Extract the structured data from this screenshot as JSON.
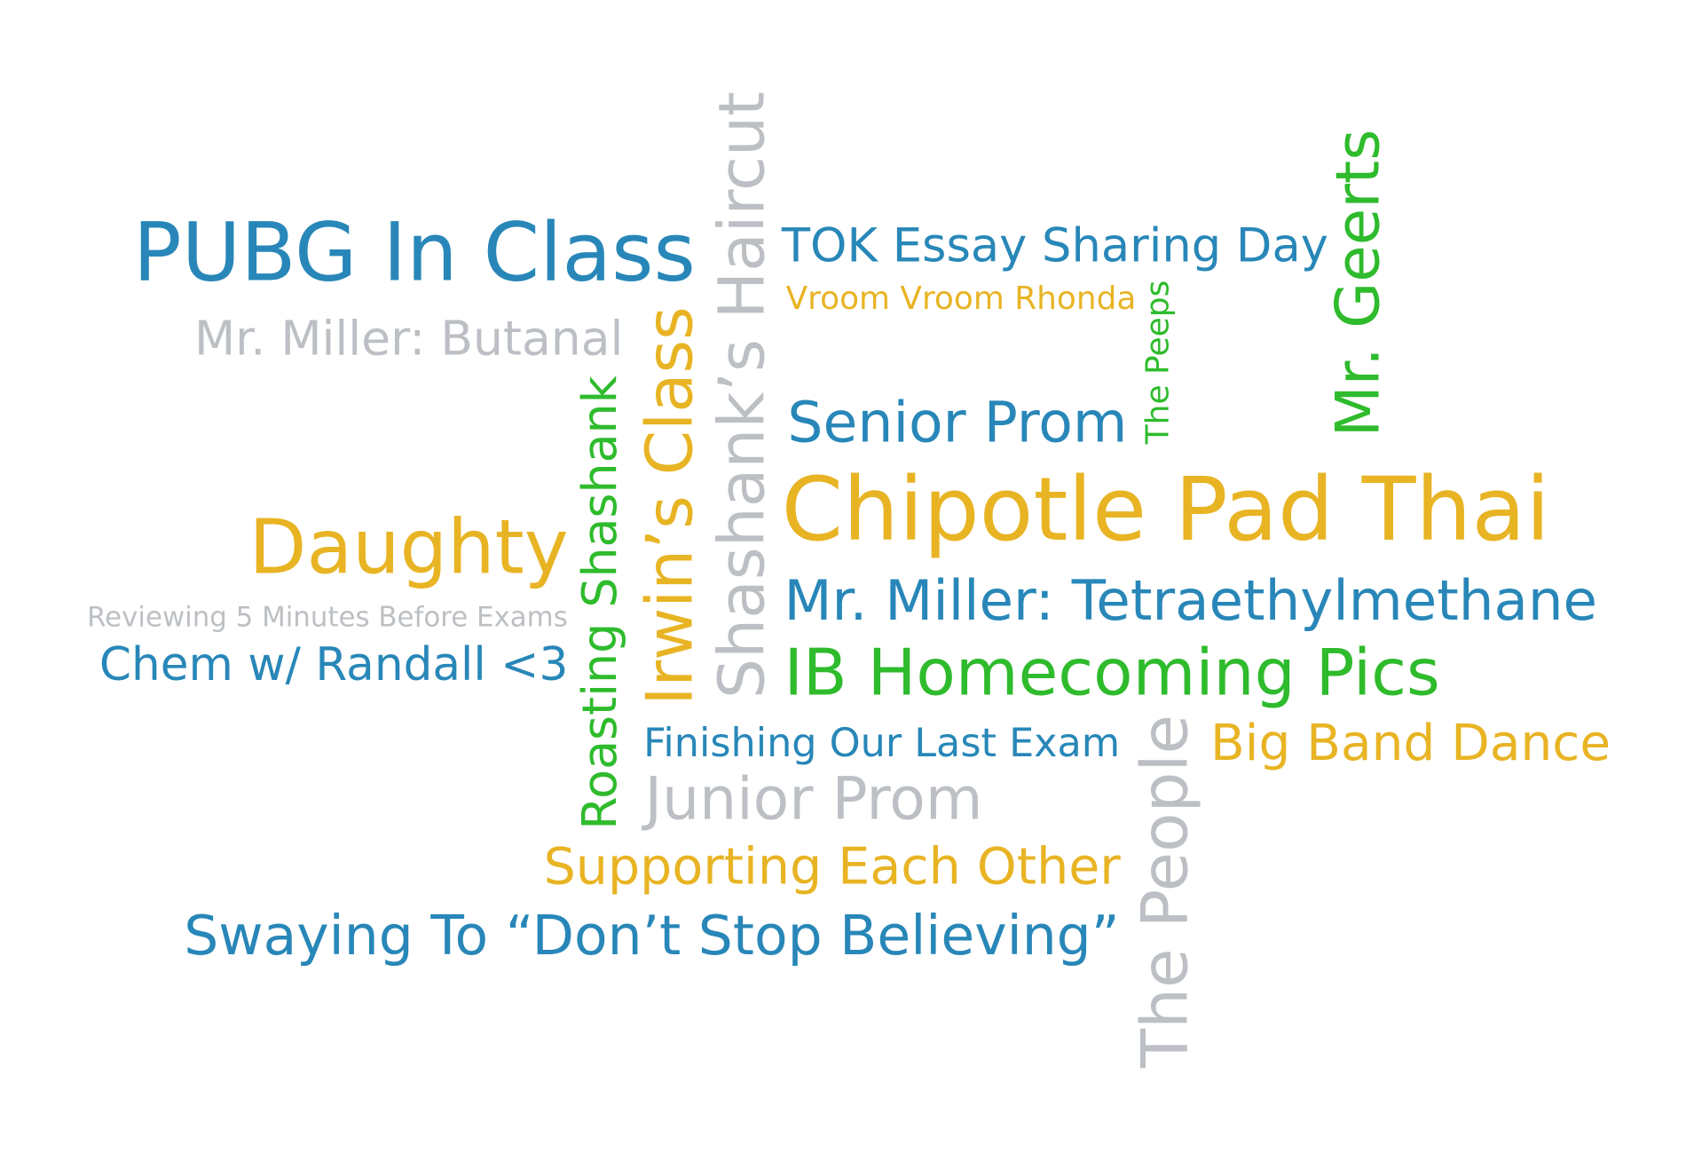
{
  "palette": {
    "blue": "#2887b8",
    "gold": "#e8b424",
    "gray": "#bcc0c4",
    "green": "#2ebb2c"
  },
  "words": [
    {
      "id": "pubg",
      "text": "PUBG In Class",
      "color": "blue"
    },
    {
      "id": "miller-butanal",
      "text": "Mr. Miller: Butanal",
      "color": "gray"
    },
    {
      "id": "daughty",
      "text": "Daughty",
      "color": "gold"
    },
    {
      "id": "reviewing",
      "text": "Reviewing 5 Minutes Before Exams",
      "color": "gray"
    },
    {
      "id": "chem-randall",
      "text": "Chem w/ Randall <3",
      "color": "blue"
    },
    {
      "id": "roasting",
      "text": "Roasting Shashank",
      "color": "green"
    },
    {
      "id": "irwin",
      "text": "Irwin’s Class",
      "color": "gold"
    },
    {
      "id": "haircut",
      "text": "Shashank’s Haircut",
      "color": "gray"
    },
    {
      "id": "tok",
      "text": "TOK Essay Sharing Day",
      "color": "blue"
    },
    {
      "id": "vroom",
      "text": "Vroom Vroom Rhonda",
      "color": "gold"
    },
    {
      "id": "peeps",
      "text": "The Peeps",
      "color": "green"
    },
    {
      "id": "geerts",
      "text": "Mr. Geerts",
      "color": "green"
    },
    {
      "id": "senior-prom",
      "text": "Senior Prom",
      "color": "blue"
    },
    {
      "id": "chipotle",
      "text": "Chipotle Pad Thai",
      "color": "gold"
    },
    {
      "id": "tetraethyl",
      "text": "Mr. Miller: Tetraethylmethane",
      "color": "blue"
    },
    {
      "id": "ib-homecoming",
      "text": "IB Homecoming Pics",
      "color": "green"
    },
    {
      "id": "finishing",
      "text": "Finishing Our Last Exam",
      "color": "blue"
    },
    {
      "id": "big-band",
      "text": "Big Band Dance",
      "color": "gold"
    },
    {
      "id": "junior-prom",
      "text": "Junior Prom",
      "color": "gray"
    },
    {
      "id": "the-people",
      "text": "The People",
      "color": "gray"
    },
    {
      "id": "supporting",
      "text": "Supporting Each Other",
      "color": "gold"
    },
    {
      "id": "swaying",
      "text": "Swaying To “Don’t Stop Believing”",
      "color": "blue"
    }
  ]
}
